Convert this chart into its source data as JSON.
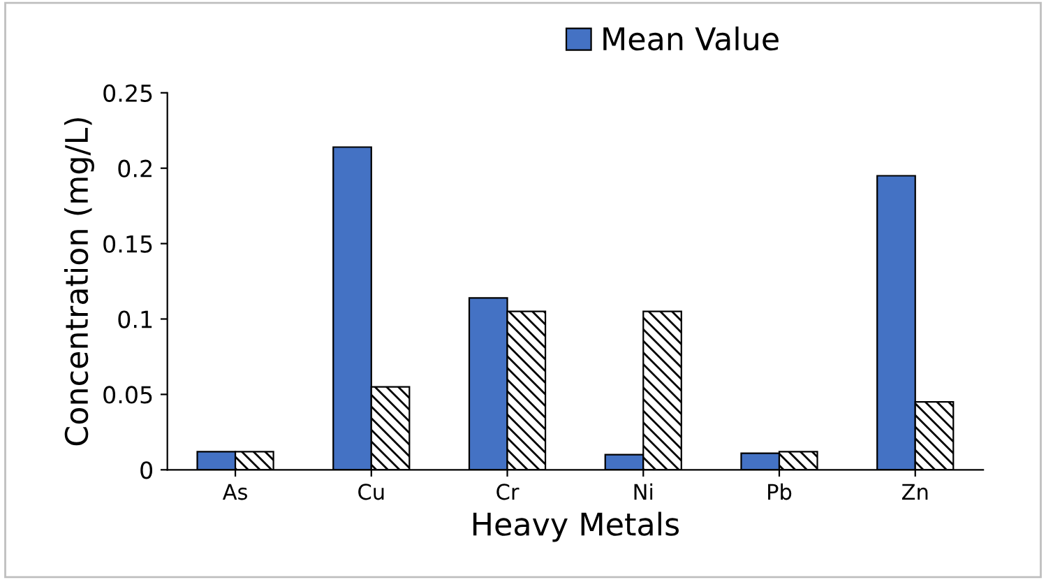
{
  "chart_data": {
    "type": "bar",
    "categories": [
      "As",
      "Cu",
      "Cr",
      "Ni",
      "Pb",
      "Zn"
    ],
    "series": [
      {
        "name": "Mean Value",
        "color": "#4472c4",
        "values": [
          0.012,
          0.214,
          0.114,
          0.01,
          0.011,
          0.195
        ]
      },
      {
        "color": "#000000",
        "values": [
          0.012,
          0.055,
          0.105,
          0.105,
          0.012,
          0.045
        ]
      }
    ],
    "ylim": [
      0,
      0.25
    ],
    "yticks": [
      0,
      0.05,
      0.1,
      0.15,
      0.2,
      0.25
    ],
    "xlabel": "Heavy Metals",
    "ylabel": "Concentration (mg/L)",
    "grid": false,
    "legend": "top"
  }
}
